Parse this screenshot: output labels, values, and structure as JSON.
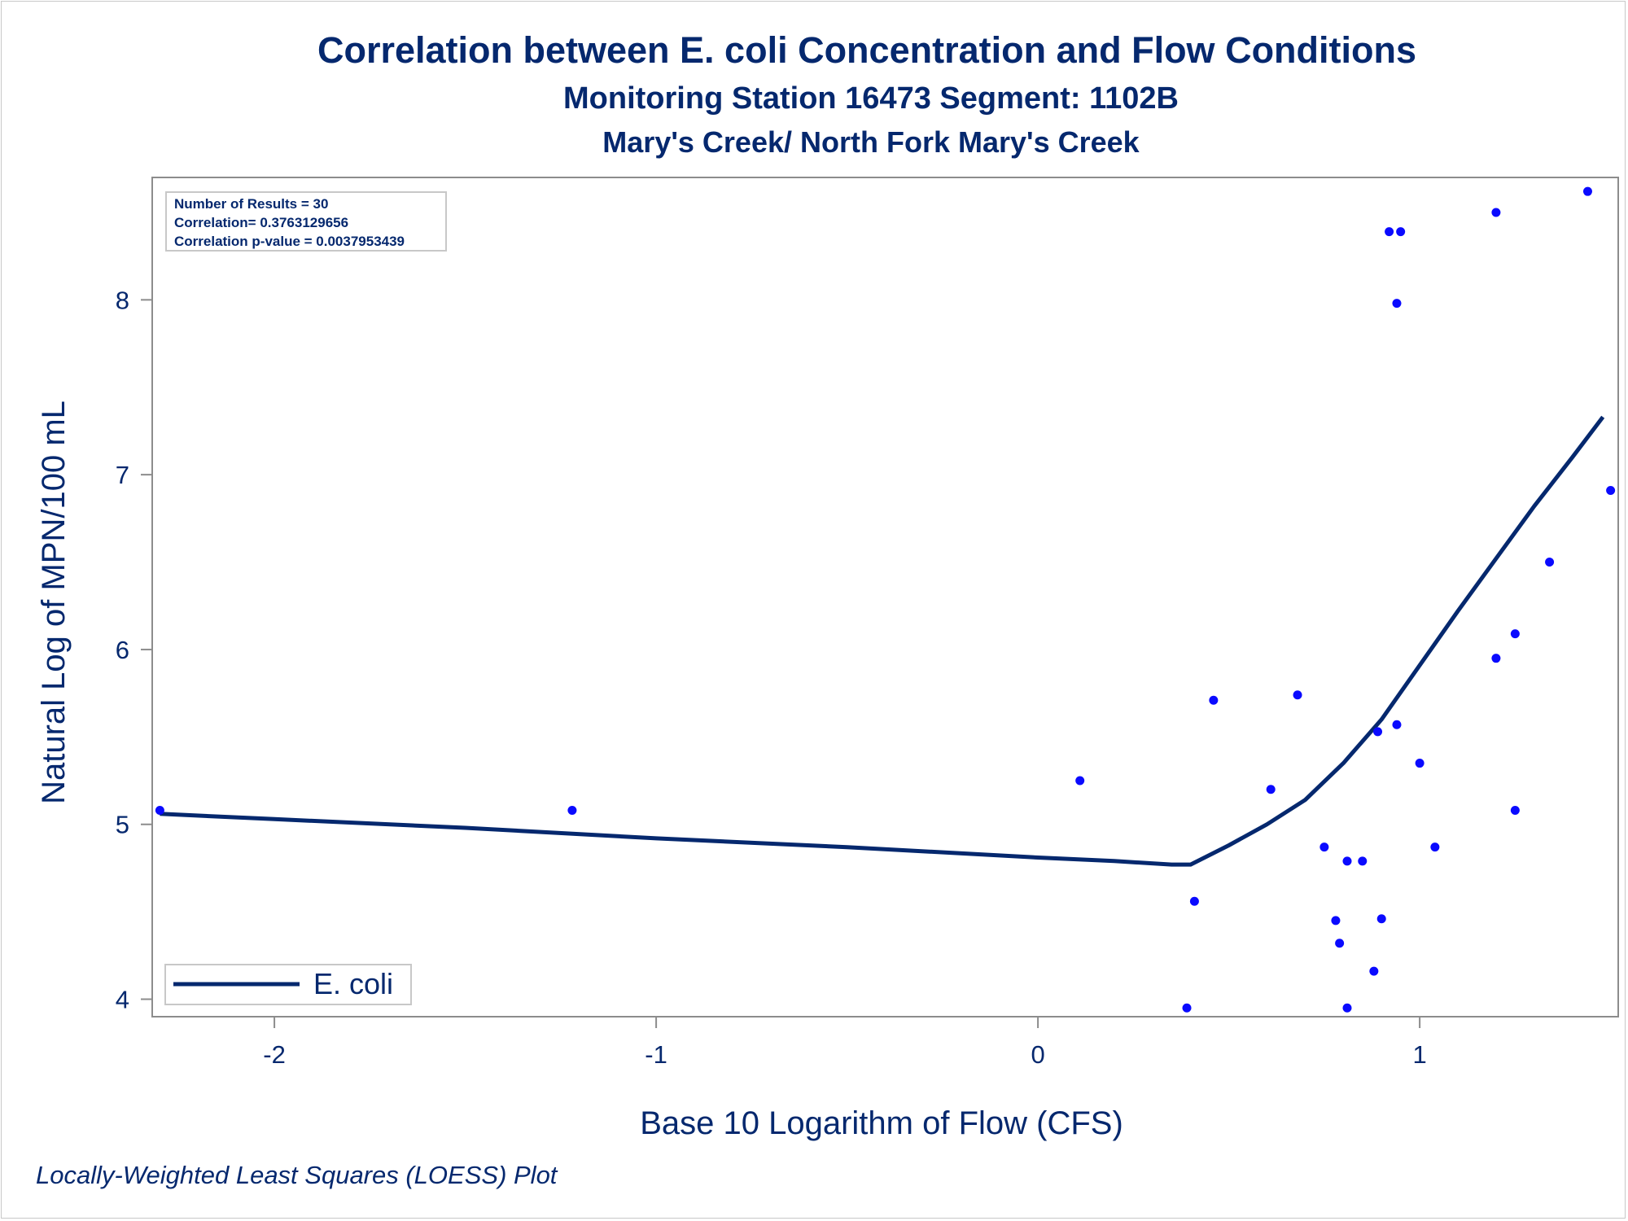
{
  "chart_data": {
    "type": "scatter",
    "title": "Correlation between E. coli Concentration and Flow Conditions",
    "subtitle": "Monitoring Station 16473 Segment: 1102B",
    "subtitle2": "Mary's Creek/ North Fork Mary's Creek",
    "footnote": "Locally-Weighted Least Squares (LOESS) Plot",
    "xlabel": "Base 10 Logarithm of Flow (CFS)",
    "ylabel": "Natural Log of MPN/100 mL",
    "xlim": [
      -2.32,
      1.52
    ],
    "ylim": [
      3.9,
      8.7
    ],
    "x_ticks": [
      -2,
      -1,
      0,
      1
    ],
    "y_ticks": [
      4,
      5,
      6,
      7,
      8
    ],
    "x_tick_labels": [
      "-2",
      "-1",
      "0",
      "1"
    ],
    "y_tick_labels": [
      "4",
      "5",
      "6",
      "7",
      "8"
    ],
    "stats": [
      "Number of Results = 30",
      "Correlation= 0.3763129656",
      "Correlation p-value = 0.0037953439"
    ],
    "legend": {
      "position": "bottom-left",
      "label": "E. coli"
    },
    "grid": false,
    "colors": {
      "points": "#0a0aff",
      "line": "#05286e",
      "text": "#05286e",
      "axis": "#8c8c8c"
    },
    "points": [
      {
        "x": -2.3,
        "y": 5.08
      },
      {
        "x": -1.22,
        "y": 5.08
      },
      {
        "x": 0.11,
        "y": 5.25
      },
      {
        "x": 0.39,
        "y": 3.95
      },
      {
        "x": 0.41,
        "y": 4.56
      },
      {
        "x": 0.46,
        "y": 5.71
      },
      {
        "x": 0.61,
        "y": 5.2
      },
      {
        "x": 0.68,
        "y": 5.74
      },
      {
        "x": 0.75,
        "y": 4.87
      },
      {
        "x": 0.78,
        "y": 4.45
      },
      {
        "x": 0.79,
        "y": 4.32
      },
      {
        "x": 0.81,
        "y": 4.79
      },
      {
        "x": 0.81,
        "y": 3.95
      },
      {
        "x": 0.85,
        "y": 4.79
      },
      {
        "x": 0.88,
        "y": 4.16
      },
      {
        "x": 0.89,
        "y": 5.53
      },
      {
        "x": 0.9,
        "y": 4.46
      },
      {
        "x": 0.92,
        "y": 8.39
      },
      {
        "x": 0.94,
        "y": 5.57
      },
      {
        "x": 0.94,
        "y": 7.98
      },
      {
        "x": 0.95,
        "y": 8.39
      },
      {
        "x": 1.0,
        "y": 5.35
      },
      {
        "x": 1.04,
        "y": 4.87
      },
      {
        "x": 1.2,
        "y": 8.5
      },
      {
        "x": 1.2,
        "y": 5.95
      },
      {
        "x": 1.25,
        "y": 6.09
      },
      {
        "x": 1.25,
        "y": 5.08
      },
      {
        "x": 1.34,
        "y": 6.5
      },
      {
        "x": 1.44,
        "y": 8.62
      },
      {
        "x": 1.5,
        "y": 6.91
      }
    ],
    "loess": [
      {
        "x": -2.3,
        "y": 5.06
      },
      {
        "x": -2.0,
        "y": 5.03
      },
      {
        "x": -1.5,
        "y": 4.98
      },
      {
        "x": -1.0,
        "y": 4.92
      },
      {
        "x": -0.5,
        "y": 4.87
      },
      {
        "x": 0.0,
        "y": 4.81
      },
      {
        "x": 0.2,
        "y": 4.79
      },
      {
        "x": 0.35,
        "y": 4.77
      },
      {
        "x": 0.4,
        "y": 4.77
      },
      {
        "x": 0.5,
        "y": 4.88
      },
      {
        "x": 0.6,
        "y": 5.0
      },
      {
        "x": 0.7,
        "y": 5.14
      },
      {
        "x": 0.8,
        "y": 5.35
      },
      {
        "x": 0.9,
        "y": 5.6
      },
      {
        "x": 1.0,
        "y": 5.91
      },
      {
        "x": 1.1,
        "y": 6.22
      },
      {
        "x": 1.2,
        "y": 6.52
      },
      {
        "x": 1.3,
        "y": 6.82
      },
      {
        "x": 1.4,
        "y": 7.1
      },
      {
        "x": 1.48,
        "y": 7.33
      }
    ]
  }
}
